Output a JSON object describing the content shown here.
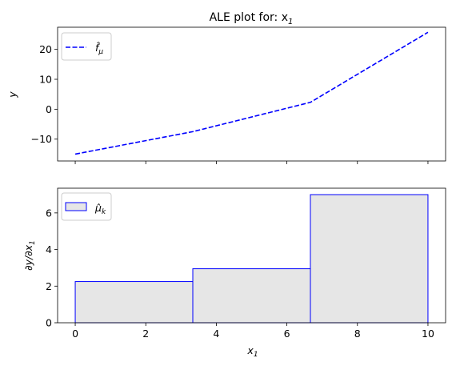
{
  "chart_data": [
    {
      "type": "line",
      "title": "ALE plot for: x",
      "title_sub": "1",
      "xlabel": "",
      "ylabel": "y",
      "xlim": [
        -0.5,
        10.5
      ],
      "ylim": [
        -17.3,
        27.4
      ],
      "x_ticks": [
        0,
        2,
        4,
        6,
        8,
        10
      ],
      "y_ticks": [
        -10,
        0,
        10,
        20
      ],
      "y_tick_labels": [
        "−10",
        "0",
        "10",
        "20"
      ],
      "grid": false,
      "legend_position": "top-left",
      "series": [
        {
          "name": "f̂_μ",
          "color": "#0000ff",
          "style": "dashed",
          "x": [
            0,
            3.333,
            6.667,
            10
          ],
          "y": [
            -15.0,
            -7.5,
            2.3,
            25.7
          ]
        }
      ]
    },
    {
      "type": "bar",
      "title": "",
      "xlabel": "x1",
      "ylabel": "∂y/∂x1",
      "xlim": [
        -0.5,
        10.5
      ],
      "ylim": [
        0,
        7.35
      ],
      "x_ticks": [
        0,
        2,
        4,
        6,
        8,
        10
      ],
      "x_tick_labels": [
        "0",
        "2",
        "4",
        "6",
        "8",
        "10"
      ],
      "y_ticks": [
        0,
        2,
        4,
        6
      ],
      "y_tick_labels": [
        "0",
        "2",
        "4",
        "6"
      ],
      "grid": false,
      "legend_position": "top-left",
      "series": [
        {
          "name": "μ̂_k",
          "edge_color": "#0000ff",
          "fill_color": "#e6e6e6",
          "bins": [
            {
              "x0": 0,
              "x1": 3.333,
              "value": 2.25
            },
            {
              "x0": 3.333,
              "x1": 6.667,
              "value": 2.95
            },
            {
              "x0": 6.667,
              "x1": 10,
              "value": 7.0
            }
          ]
        }
      ]
    }
  ]
}
